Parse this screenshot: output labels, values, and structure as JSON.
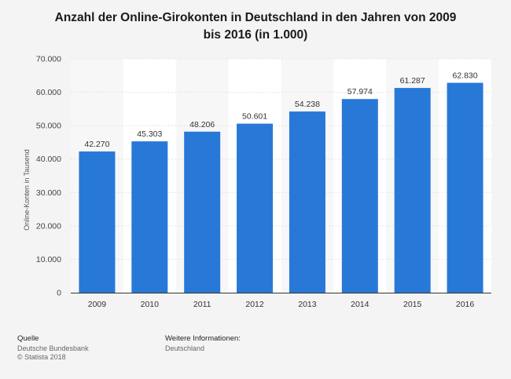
{
  "chart_data": {
    "type": "bar",
    "title": "Anzahl der Online-Girokonten in Deutschland in den Jahren von 2009 bis 2016 (in 1.000)",
    "title_lines": [
      "Anzahl der Online-Girokonten in Deutschland in den Jahren von 2009",
      "bis 2016 (in 1.000)"
    ],
    "xlabel": "",
    "ylabel": "Online-Konten in Tausend",
    "categories": [
      "2009",
      "2010",
      "2011",
      "2012",
      "2013",
      "2014",
      "2015",
      "2016"
    ],
    "values": [
      42270,
      45303,
      48206,
      50601,
      54238,
      57974,
      61287,
      62830
    ],
    "value_labels": [
      "42.270",
      "45.303",
      "48.206",
      "50.601",
      "54.238",
      "57.974",
      "61.287",
      "62.830"
    ],
    "ylim": [
      0,
      70000
    ],
    "yticks": [
      0,
      10000,
      20000,
      30000,
      40000,
      50000,
      60000,
      70000
    ],
    "ytick_labels": [
      "0",
      "10.000",
      "20.000",
      "30.000",
      "40.000",
      "50.000",
      "60.000",
      "70.000"
    ],
    "bar_color": "#2878d8",
    "grid": true
  },
  "footer": {
    "source_label": "Quelle",
    "source_lines": [
      "Deutsche Bundesbank",
      "© Statista 2018"
    ],
    "info_label": "Weitere Informationen:",
    "info_value": "Deutschland"
  }
}
